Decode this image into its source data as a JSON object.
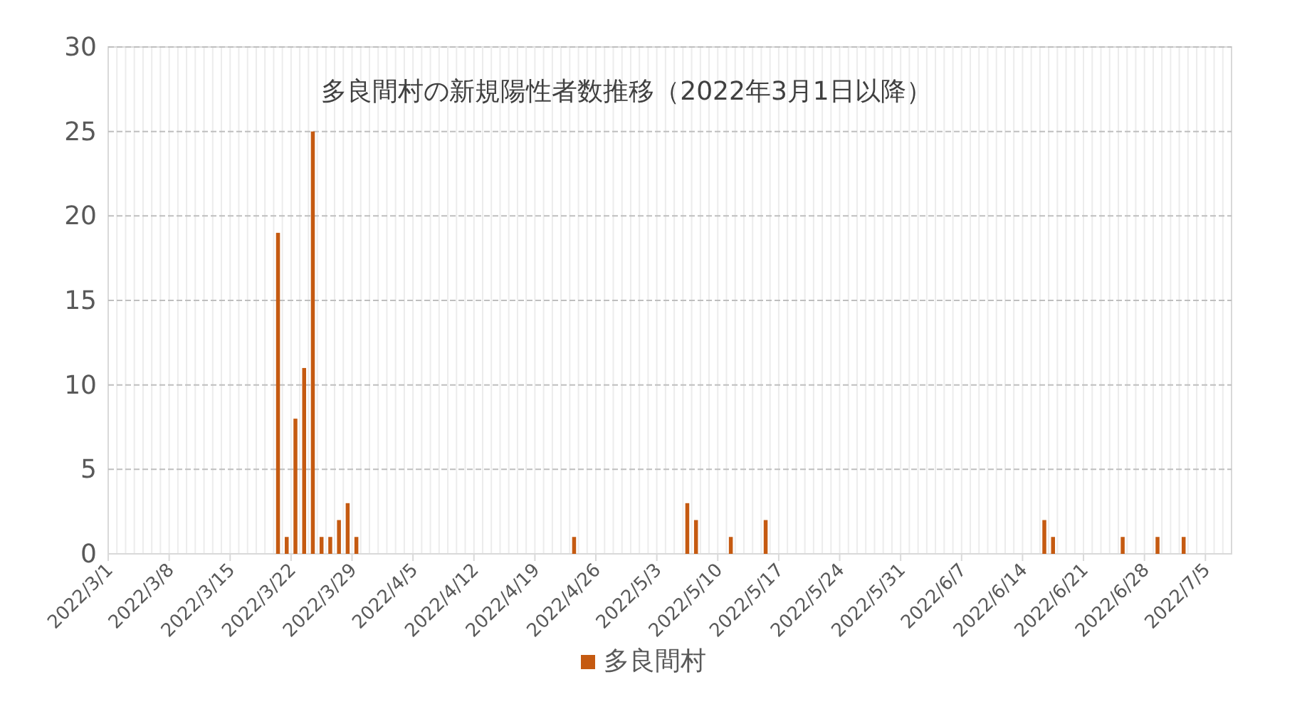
{
  "chart_data": {
    "type": "bar",
    "title": "多良間村の新規陽性者数推移（2022年3月1日以降）",
    "x": [
      "2022-03-20",
      "2022-03-21",
      "2022-03-22",
      "2022-03-23",
      "2022-03-24",
      "2022-03-25",
      "2022-03-26",
      "2022-03-27",
      "2022-03-28",
      "2022-03-29",
      "2022-04-23",
      "2022-05-06",
      "2022-05-07",
      "2022-05-11",
      "2022-05-15",
      "2022-06-16",
      "2022-06-17",
      "2022-06-25",
      "2022-06-29",
      "2022-07-02"
    ],
    "series": [
      {
        "name": "多良間村",
        "color": "#c55a11",
        "values": [
          19,
          1,
          8,
          11,
          25,
          1,
          1,
          2,
          3,
          1,
          1,
          3,
          2,
          1,
          2,
          2,
          1,
          1,
          1,
          1
        ]
      }
    ],
    "xlim": [
      "2022-03-01",
      "2022-07-08"
    ],
    "xticks": [
      {
        "value": "2022-03-01",
        "label": "2022/3/1"
      },
      {
        "value": "2022-03-08",
        "label": "2022/3/8"
      },
      {
        "value": "2022-03-15",
        "label": "2022/3/15"
      },
      {
        "value": "2022-03-22",
        "label": "2022/3/22"
      },
      {
        "value": "2022-03-29",
        "label": "2022/3/29"
      },
      {
        "value": "2022-04-05",
        "label": "2022/4/5"
      },
      {
        "value": "2022-04-12",
        "label": "2022/4/12"
      },
      {
        "value": "2022-04-19",
        "label": "2022/4/19"
      },
      {
        "value": "2022-04-26",
        "label": "2022/4/26"
      },
      {
        "value": "2022-05-03",
        "label": "2022/5/3"
      },
      {
        "value": "2022-05-10",
        "label": "2022/5/10"
      },
      {
        "value": "2022-05-17",
        "label": "2022/5/17"
      },
      {
        "value": "2022-05-24",
        "label": "2022/5/24"
      },
      {
        "value": "2022-05-31",
        "label": "2022/5/31"
      },
      {
        "value": "2022-06-07",
        "label": "2022/6/7"
      },
      {
        "value": "2022-06-14",
        "label": "2022/6/14"
      },
      {
        "value": "2022-06-21",
        "label": "2022/6/21"
      },
      {
        "value": "2022-06-28",
        "label": "2022/6/28"
      },
      {
        "value": "2022-07-05",
        "label": "2022/7/5"
      }
    ],
    "ylim": [
      0,
      30
    ],
    "yticks": [
      0,
      5,
      10,
      15,
      20,
      25,
      30
    ],
    "grid": true,
    "legend": "bottom"
  }
}
